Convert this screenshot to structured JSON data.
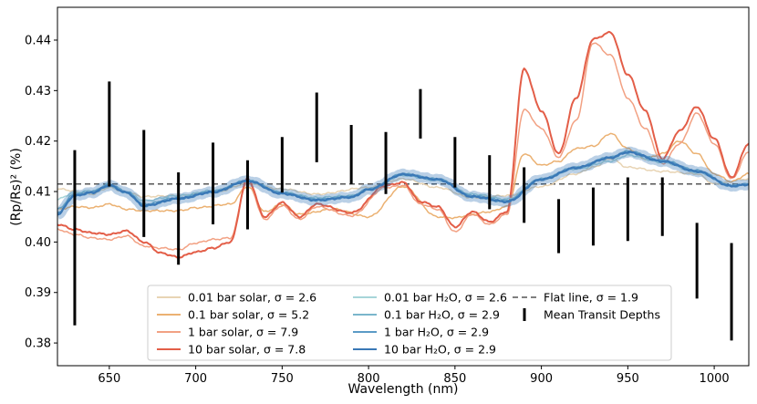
{
  "chart_data": {
    "type": "line",
    "title": "",
    "xlabel": "Wavelength (nm)",
    "ylabel": "(Rp/Rs)² (%)",
    "xlim": [
      620,
      1020
    ],
    "ylim": [
      0.3755,
      0.4465
    ],
    "xticks": [
      650,
      700,
      750,
      800,
      850,
      900,
      950,
      1000
    ],
    "yticks": [
      0.38,
      0.39,
      0.4,
      0.41,
      0.42,
      0.43,
      0.44
    ],
    "ytick_labels": [
      "0.38",
      "0.39",
      "0.40",
      "0.41",
      "0.42",
      "0.43",
      "0.44"
    ],
    "legend_position": "bottom-center",
    "flat_line": {
      "name": "Flat line, σ = 1.9",
      "value": 0.4115,
      "color": "#555555"
    },
    "series": [
      {
        "name": "0.01 bar solar, σ = 2.6",
        "color": "#e8d4b4",
        "width": 1.5,
        "band": 0,
        "x": [
          620,
          640,
          650,
          660,
          670,
          690,
          710,
          730,
          750,
          770,
          800,
          820,
          840,
          860,
          880,
          900,
          920,
          930,
          940,
          950,
          970,
          990,
          1000,
          1020
        ],
        "y": [
          0.4105,
          0.4095,
          0.4108,
          0.4098,
          0.409,
          0.4092,
          0.4098,
          0.4115,
          0.4105,
          0.4095,
          0.4108,
          0.4125,
          0.4108,
          0.4088,
          0.4092,
          0.411,
          0.4135,
          0.4148,
          0.4165,
          0.4148,
          0.414,
          0.4135,
          0.4115,
          0.4125
        ]
      },
      {
        "name": "0.1 bar solar, σ = 5.2",
        "color": "#ebb172",
        "width": 1.5,
        "band": 0,
        "x": [
          620,
          630,
          640,
          650,
          660,
          670,
          680,
          690,
          700,
          720,
          730,
          740,
          750,
          760,
          780,
          800,
          820,
          840,
          850,
          860,
          870,
          880,
          890,
          900,
          910,
          920,
          930,
          940,
          950,
          960,
          970,
          980,
          990,
          1000,
          1010,
          1020
        ],
        "y": [
          0.4065,
          0.407,
          0.4068,
          0.4075,
          0.4065,
          0.4062,
          0.4062,
          0.4062,
          0.4068,
          0.4075,
          0.411,
          0.406,
          0.4075,
          0.4055,
          0.4065,
          0.405,
          0.411,
          0.405,
          0.4048,
          0.4055,
          0.406,
          0.407,
          0.4175,
          0.4152,
          0.416,
          0.4185,
          0.419,
          0.4215,
          0.4185,
          0.4165,
          0.4175,
          0.42,
          0.4175,
          0.4135,
          0.412,
          0.4135
        ]
      },
      {
        "name": "1 bar solar, σ = 7.9",
        "color": "#f2a183",
        "width": 1.5,
        "band": 0,
        "x": [
          620,
          630,
          640,
          650,
          660,
          670,
          680,
          690,
          700,
          710,
          720,
          730,
          740,
          750,
          760,
          770,
          790,
          810,
          820,
          830,
          840,
          850,
          860,
          870,
          880,
          890,
          900,
          910,
          920,
          930,
          940,
          950,
          960,
          970,
          980,
          990,
          1000,
          1010,
          1020
        ],
        "y": [
          0.4025,
          0.4015,
          0.4008,
          0.4005,
          0.4012,
          0.3992,
          0.3988,
          0.3985,
          0.3998,
          0.4005,
          0.4008,
          0.412,
          0.4045,
          0.4072,
          0.4045,
          0.407,
          0.4052,
          0.4108,
          0.4112,
          0.4075,
          0.4065,
          0.402,
          0.4055,
          0.4035,
          0.4055,
          0.4262,
          0.4225,
          0.4168,
          0.424,
          0.4395,
          0.437,
          0.4285,
          0.4225,
          0.4155,
          0.4195,
          0.4255,
          0.4195,
          0.4125,
          0.4178
        ]
      },
      {
        "name": "10 bar solar, σ = 7.8",
        "color": "#e35e48",
        "width": 2.0,
        "band": 0,
        "x": [
          620,
          630,
          640,
          650,
          660,
          670,
          680,
          690,
          700,
          710,
          720,
          730,
          740,
          750,
          760,
          770,
          790,
          810,
          820,
          830,
          840,
          850,
          860,
          870,
          880,
          890,
          900,
          910,
          920,
          930,
          940,
          950,
          960,
          970,
          980,
          990,
          1000,
          1010,
          1020
        ],
        "y": [
          0.4035,
          0.4025,
          0.4018,
          0.4015,
          0.4022,
          0.4,
          0.3978,
          0.397,
          0.398,
          0.3988,
          0.4,
          0.4125,
          0.405,
          0.4078,
          0.405,
          0.4075,
          0.4058,
          0.4112,
          0.4118,
          0.408,
          0.407,
          0.403,
          0.406,
          0.404,
          0.406,
          0.4342,
          0.426,
          0.4175,
          0.4285,
          0.4402,
          0.4415,
          0.4332,
          0.426,
          0.4165,
          0.422,
          0.4268,
          0.4205,
          0.4128,
          0.4195
        ]
      },
      {
        "name": "0.01 bar H₂O, σ = 2.6",
        "color": "#a7d5d9",
        "width": 1.5,
        "band": 0,
        "x": [
          620,
          630,
          640,
          650,
          660,
          670,
          690,
          710,
          730,
          750,
          770,
          790,
          800,
          820,
          840,
          860,
          880,
          900,
          920,
          940,
          950,
          970,
          990,
          1010,
          1020
        ],
        "y": [
          0.4085,
          0.4098,
          0.4102,
          0.411,
          0.4098,
          0.4082,
          0.4092,
          0.4102,
          0.412,
          0.4098,
          0.4088,
          0.4092,
          0.4105,
          0.4132,
          0.4122,
          0.4095,
          0.4085,
          0.4125,
          0.4145,
          0.416,
          0.4172,
          0.4158,
          0.4138,
          0.4112,
          0.4115
        ]
      },
      {
        "name": "0.1 bar H₂O, σ = 2.9",
        "color": "#7ab6cb",
        "width": 1.5,
        "band": 0,
        "x": [
          620,
          630,
          640,
          650,
          660,
          670,
          690,
          710,
          730,
          750,
          770,
          790,
          800,
          820,
          840,
          860,
          880,
          900,
          920,
          940,
          950,
          970,
          990,
          1010,
          1020
        ],
        "y": [
          0.4065,
          0.4095,
          0.41,
          0.4115,
          0.41,
          0.4075,
          0.4088,
          0.41,
          0.4122,
          0.4098,
          0.4085,
          0.409,
          0.4105,
          0.4135,
          0.4125,
          0.4092,
          0.4082,
          0.4125,
          0.4148,
          0.4168,
          0.418,
          0.4162,
          0.4142,
          0.4112,
          0.4115
        ]
      },
      {
        "name": "1 bar H₂O, σ = 2.9",
        "color": "#5b9bc6",
        "width": 2.0,
        "band": 0,
        "x": [
          620,
          630,
          640,
          650,
          660,
          670,
          690,
          710,
          730,
          750,
          770,
          790,
          800,
          820,
          840,
          860,
          880,
          900,
          920,
          940,
          950,
          970,
          990,
          1010,
          1020
        ],
        "y": [
          0.4058,
          0.4092,
          0.4098,
          0.4112,
          0.4098,
          0.4072,
          0.4086,
          0.4099,
          0.4121,
          0.4096,
          0.4083,
          0.4089,
          0.4104,
          0.4134,
          0.4124,
          0.409,
          0.408,
          0.4124,
          0.4147,
          0.4167,
          0.4178,
          0.416,
          0.414,
          0.4111,
          0.4114
        ]
      },
      {
        "name": "10 bar H₂O, σ = 2.9",
        "color": "#3a78b6",
        "width": 2.2,
        "band": 0.0008,
        "x": [
          620,
          630,
          640,
          650,
          660,
          670,
          690,
          710,
          730,
          750,
          770,
          790,
          800,
          820,
          840,
          860,
          880,
          900,
          920,
          940,
          950,
          970,
          990,
          1010,
          1020
        ],
        "y": [
          0.4055,
          0.4092,
          0.4098,
          0.4112,
          0.4098,
          0.4072,
          0.4086,
          0.4099,
          0.4121,
          0.4096,
          0.4083,
          0.4089,
          0.4104,
          0.4134,
          0.4124,
          0.409,
          0.408,
          0.4124,
          0.4147,
          0.4167,
          0.4178,
          0.416,
          0.414,
          0.4111,
          0.4114
        ]
      }
    ],
    "mean_transit_depths": {
      "name": "Mean Transit Depths",
      "color": "#000000",
      "points": [
        {
          "x": 630,
          "low": 0.3835,
          "high": 0.4182
        },
        {
          "x": 650,
          "low": 0.411,
          "high": 0.4318
        },
        {
          "x": 670,
          "low": 0.401,
          "high": 0.4222
        },
        {
          "x": 690,
          "low": 0.3955,
          "high": 0.4138
        },
        {
          "x": 710,
          "low": 0.4035,
          "high": 0.4197
        },
        {
          "x": 730,
          "low": 0.4025,
          "high": 0.4162
        },
        {
          "x": 750,
          "low": 0.4098,
          "high": 0.4208
        },
        {
          "x": 770,
          "low": 0.4158,
          "high": 0.4296
        },
        {
          "x": 790,
          "low": 0.4115,
          "high": 0.4232
        },
        {
          "x": 810,
          "low": 0.4095,
          "high": 0.4218
        },
        {
          "x": 830,
          "low": 0.4205,
          "high": 0.4303
        },
        {
          "x": 850,
          "low": 0.4108,
          "high": 0.4208
        },
        {
          "x": 870,
          "low": 0.4065,
          "high": 0.4172
        },
        {
          "x": 890,
          "low": 0.4038,
          "high": 0.4148
        },
        {
          "x": 910,
          "low": 0.3978,
          "high": 0.4085
        },
        {
          "x": 930,
          "low": 0.3993,
          "high": 0.4108
        },
        {
          "x": 950,
          "low": 0.4002,
          "high": 0.4128
        },
        {
          "x": 970,
          "low": 0.4012,
          "high": 0.4128
        },
        {
          "x": 990,
          "low": 0.3888,
          "high": 0.4038
        },
        {
          "x": 1010,
          "low": 0.3805,
          "high": 0.3998
        }
      ]
    }
  }
}
